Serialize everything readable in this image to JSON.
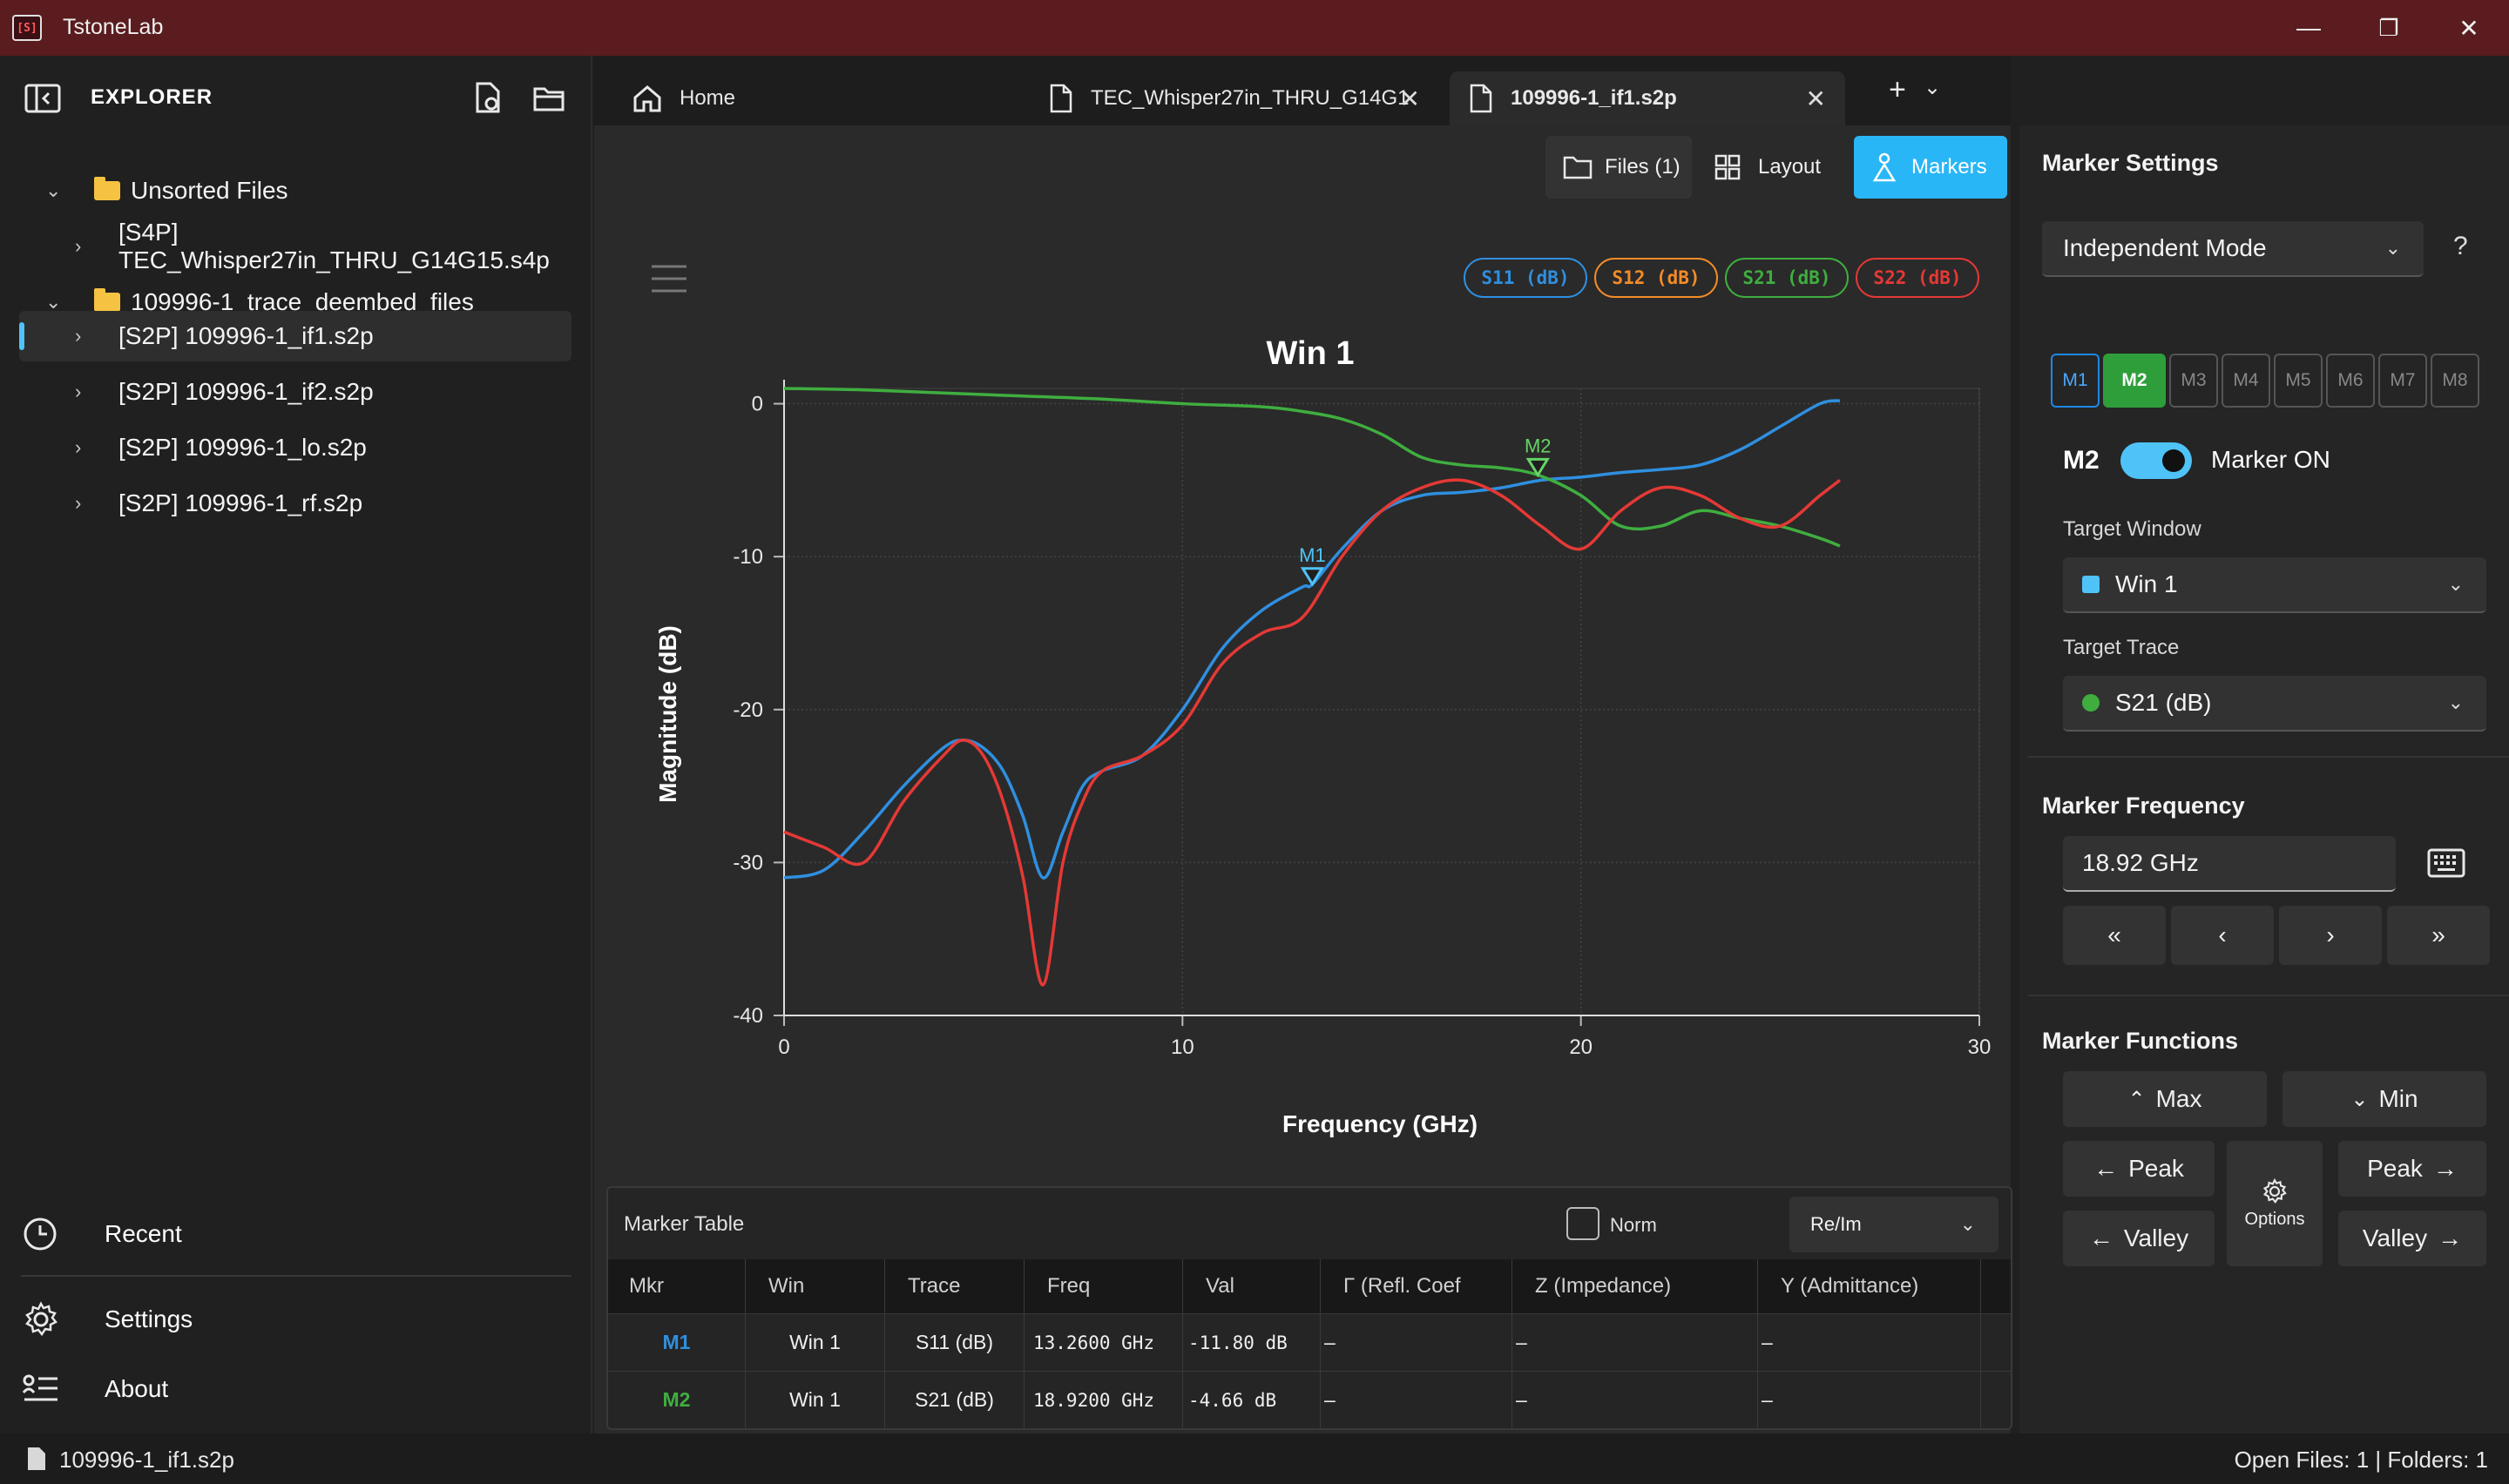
{
  "app": {
    "title": "TstoneLab",
    "logo_text": "[S]"
  },
  "window_controls": {
    "minimize": "—",
    "maximize": "❐",
    "close": "✕"
  },
  "explorer": {
    "title": "EXPLORER",
    "tree": [
      {
        "label": "Unsorted Files",
        "type": "folder",
        "expanded": true
      },
      {
        "label": "[S4P] TEC_Whisper27in_THRU_G14G15.s4p",
        "type": "file"
      },
      {
        "label": "109996-1_trace_deembed_files",
        "type": "folder",
        "expanded": true
      },
      {
        "label": "[S2P] 109996-1_if1.s2p",
        "type": "file",
        "selected": true
      },
      {
        "label": "[S2P] 109996-1_if2.s2p",
        "type": "file"
      },
      {
        "label": "[S2P] 109996-1_lo.s2p",
        "type": "file"
      },
      {
        "label": "[S2P] 109996-1_rf.s2p",
        "type": "file"
      }
    ],
    "bottom": {
      "recent": "Recent",
      "settings": "Settings",
      "about": "About"
    }
  },
  "tabs": [
    {
      "label": "Home"
    },
    {
      "label": "TEC_Whisper27in_THRU_G14G1"
    },
    {
      "label": "109996-1_if1.s2p",
      "active": true
    }
  ],
  "tab_add": "+",
  "toolbar": {
    "files": "Files (1)",
    "layout": "Layout",
    "markers": "Markers"
  },
  "legend": [
    {
      "label": "S11 (dB)",
      "color": "#2f8fe0"
    },
    {
      "label": "S12 (dB)",
      "color": "#f28c28"
    },
    {
      "label": "S21 (dB)",
      "color": "#3fae3f"
    },
    {
      "label": "S22 (dB)",
      "color": "#e53935"
    }
  ],
  "chart_data": {
    "type": "line",
    "title": "Win 1",
    "xlabel": "Frequency (GHz)",
    "ylabel": "Magnitude (dB)",
    "xlim": [
      0,
      30
    ],
    "ylim": [
      -40,
      1
    ],
    "xticks": [
      0,
      10,
      20,
      30
    ],
    "yticks": [
      0,
      -10,
      -20,
      -30,
      -40
    ],
    "grid": true,
    "series": [
      {
        "name": "S11 (dB)",
        "color": "#2f8fe0",
        "x": [
          0,
          1,
          2,
          3,
          4,
          4.5,
          5,
          5.5,
          6,
          6.5,
          7,
          7.5,
          8,
          9,
          10,
          11,
          12,
          13,
          13.26,
          14,
          15,
          16,
          17,
          18,
          19,
          20,
          21,
          22,
          23,
          24,
          25,
          26,
          26.5
        ],
        "y": [
          -31,
          -30.5,
          -28,
          -25,
          -22.5,
          -22,
          -22.5,
          -24,
          -27,
          -31,
          -28,
          -25,
          -24,
          -23,
          -20,
          -16,
          -13.5,
          -12,
          -11.8,
          -9.5,
          -7,
          -6,
          -5.8,
          -5.5,
          -5,
          -4.8,
          -4.5,
          -4.3,
          -4,
          -3,
          -1.5,
          0,
          0.2
        ]
      },
      {
        "name": "S21 (dB)",
        "color": "#3fae3f",
        "x": [
          0,
          2,
          4,
          6,
          8,
          10,
          12,
          13,
          14,
          15,
          16,
          17,
          18,
          18.92,
          20,
          21,
          22,
          23,
          24,
          25,
          26,
          26.5
        ],
        "y": [
          1,
          0.9,
          0.7,
          0.5,
          0.3,
          0,
          -0.2,
          -0.5,
          -1,
          -2,
          -3.5,
          -4,
          -4.2,
          -4.66,
          -6,
          -8,
          -8,
          -7,
          -7.5,
          -8,
          -8.8,
          -9.3
        ]
      },
      {
        "name": "S22 (dB)",
        "color": "#e53935",
        "x": [
          0,
          1,
          2,
          3,
          4,
          4.5,
          5,
          5.5,
          6,
          6.5,
          7,
          7.5,
          8,
          9,
          10,
          11,
          12,
          13,
          14,
          15,
          16,
          17,
          18,
          19,
          20,
          21,
          22,
          23,
          24,
          25,
          26,
          26.5
        ],
        "y": [
          -28,
          -29,
          -30,
          -26,
          -23,
          -22,
          -23,
          -26,
          -31,
          -38,
          -30,
          -26,
          -24,
          -23,
          -21,
          -17,
          -15,
          -14,
          -10,
          -7,
          -5.5,
          -5,
          -6,
          -8,
          -9.5,
          -7,
          -5.5,
          -6,
          -7.5,
          -8,
          -6,
          -5
        ]
      }
    ],
    "markers": [
      {
        "name": "M1",
        "x": 13.26,
        "y": -11.8,
        "color": "#4fc3f7"
      },
      {
        "name": "M2",
        "x": 18.92,
        "y": -4.66,
        "color": "#66d466"
      }
    ]
  },
  "marker_settings": {
    "title": "Marker Settings",
    "mode": "Independent Mode",
    "help": "?",
    "markers": [
      "M1",
      "M2",
      "M3",
      "M4",
      "M5",
      "M6",
      "M7",
      "M8"
    ],
    "active_marker": "M2",
    "marker_on_label": "Marker ON",
    "target_window_label": "Target Window",
    "target_window": "Win 1",
    "target_window_color": "#4fc3f7",
    "target_trace_label": "Target Trace",
    "target_trace": "S21 (dB)",
    "target_trace_color": "#3fae3f",
    "frequency_label": "Marker Frequency",
    "frequency_value": "18.92 GHz",
    "nav": [
      "«",
      "‹",
      "›",
      "»"
    ],
    "functions_label": "Marker Functions",
    "functions": {
      "max": "Max",
      "min": "Min",
      "peak_left": "Peak",
      "peak_right": "Peak",
      "valley_left": "Valley",
      "valley_right": "Valley",
      "options": "Options"
    }
  },
  "marker_table": {
    "title": "Marker Table",
    "norm_label": "Norm",
    "format": "Re/Im",
    "columns": [
      "Mkr",
      "Win",
      "Trace",
      "Freq",
      "Val",
      "Γ (Refl. Coef",
      "Z (Impedance)",
      "Y (Admittance)"
    ],
    "rows": [
      {
        "mkr": "M1",
        "mkr_color": "#2f8fe0",
        "win": "Win 1",
        "trace": "S11 (dB)",
        "freq": "13.2600 GHz",
        "val": "-11.80 dB",
        "gamma": "–",
        "z": "–",
        "y": "–"
      },
      {
        "mkr": "M2",
        "mkr_color": "#3fae3f",
        "win": "Win 1",
        "trace": "S21 (dB)",
        "freq": "18.9200 GHz",
        "val": "-4.66 dB",
        "gamma": "–",
        "z": "–",
        "y": "–"
      }
    ]
  },
  "status": {
    "file": "109996-1_if1.s2p",
    "summary": "Open Files: 1 | Folders: 1"
  }
}
